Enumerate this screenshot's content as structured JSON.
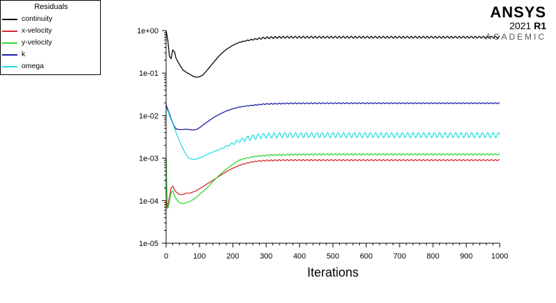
{
  "legend": {
    "title": "Residuals",
    "items": [
      {
        "label": "continuity",
        "color": "#000000"
      },
      {
        "label": "x-velocity",
        "color": "#d62728"
      },
      {
        "label": "y-velocity",
        "color": "#2ed62e"
      },
      {
        "label": "k",
        "color": "#1a1aa6"
      },
      {
        "label": "omega",
        "color": "#22dede"
      }
    ]
  },
  "brand": {
    "name": "ANSYS",
    "version_year": "2021",
    "version_release": "R1",
    "edition": "ACADEMIC"
  },
  "chart_data": {
    "type": "line",
    "xlabel": "Iterations",
    "ylabel": "",
    "xlim": [
      0,
      1000
    ],
    "ylim": [
      1e-05,
      1
    ],
    "yscale": "log",
    "x_ticks": [
      0,
      100,
      200,
      300,
      400,
      500,
      600,
      700,
      800,
      900,
      1000
    ],
    "y_ticks": [
      {
        "value": 1e-05,
        "label": "1e-05"
      },
      {
        "value": 0.0001,
        "label": "1e-04"
      },
      {
        "value": 0.001,
        "label": "1e-03"
      },
      {
        "value": 0.01,
        "label": "1e-02"
      },
      {
        "value": 0.1,
        "label": "1e-01"
      },
      {
        "value": 1,
        "label": "1e+00"
      }
    ],
    "grid": false,
    "legend_position": "top-left",
    "series": [
      {
        "name": "continuity",
        "color": "#000000",
        "x": [
          0,
          5,
          10,
          15,
          20,
          25,
          30,
          40,
          50,
          60,
          70,
          80,
          90,
          100,
          110,
          120,
          140,
          160,
          180,
          200,
          220,
          250,
          280,
          300,
          350,
          400,
          500,
          600,
          700,
          800,
          900,
          1000
        ],
        "y": [
          1.0,
          0.6,
          0.25,
          0.22,
          0.35,
          0.32,
          0.22,
          0.16,
          0.12,
          0.105,
          0.095,
          0.085,
          0.08,
          0.082,
          0.09,
          0.11,
          0.17,
          0.26,
          0.36,
          0.45,
          0.53,
          0.6,
          0.65,
          0.68,
          0.7,
          0.7,
          0.7,
          0.7,
          0.7,
          0.7,
          0.7,
          0.7
        ],
        "osc_start": 200,
        "osc_amp": 0.05,
        "osc_period": 12
      },
      {
        "name": "x-velocity",
        "color": "#d62728",
        "x": [
          0,
          3,
          6,
          10,
          15,
          20,
          25,
          30,
          40,
          50,
          60,
          70,
          80,
          90,
          100,
          120,
          140,
          160,
          180,
          200,
          220,
          240,
          260,
          280,
          300,
          350,
          400,
          500,
          600,
          700,
          800,
          900,
          1000
        ],
        "y": [
          0.0001,
          7e-05,
          8e-05,
          0.00012,
          0.0002,
          0.00022,
          0.00018,
          0.00016,
          0.00014,
          0.00014,
          0.00015,
          0.00015,
          0.00016,
          0.00017,
          0.00019,
          0.00024,
          0.0003,
          0.00038,
          0.00048,
          0.00058,
          0.00068,
          0.00076,
          0.00082,
          0.00086,
          0.00088,
          0.0009,
          0.0009,
          0.0009,
          0.0009,
          0.0009,
          0.0009,
          0.0009,
          0.0009
        ],
        "osc_start": 200,
        "osc_amp": 0.03,
        "osc_period": 12
      },
      {
        "name": "y-velocity",
        "color": "#2ed62e",
        "x": [
          0,
          2,
          5,
          8,
          12,
          16,
          20,
          25,
          30,
          40,
          50,
          60,
          70,
          80,
          90,
          100,
          120,
          140,
          160,
          180,
          200,
          220,
          240,
          260,
          280,
          300,
          350,
          400,
          500,
          600,
          700,
          800,
          900,
          1000
        ],
        "y": [
          0.001,
          0.0002,
          6.5e-05,
          8e-05,
          0.00012,
          0.00016,
          0.00017,
          0.00013,
          0.00011,
          9e-05,
          8.5e-05,
          9e-05,
          9.5e-05,
          0.000105,
          0.00012,
          0.00014,
          0.00019,
          0.00028,
          0.0004,
          0.00055,
          0.00072,
          0.0009,
          0.001,
          0.00108,
          0.00113,
          0.00117,
          0.0012,
          0.00122,
          0.00123,
          0.00123,
          0.00123,
          0.00123,
          0.00123,
          0.00123
        ],
        "osc_start": 200,
        "osc_amp": 0.03,
        "osc_period": 12
      },
      {
        "name": "k",
        "color": "#1a1aa6",
        "x": [
          0,
          5,
          10,
          15,
          20,
          25,
          30,
          40,
          50,
          60,
          70,
          80,
          90,
          100,
          120,
          140,
          160,
          180,
          200,
          220,
          250,
          280,
          300,
          350,
          400,
          500,
          600,
          700,
          800,
          900,
          1000
        ],
        "y": [
          0.018,
          0.014,
          0.011,
          0.0085,
          0.0068,
          0.0055,
          0.0049,
          0.0047,
          0.0047,
          0.0048,
          0.0047,
          0.0046,
          0.0047,
          0.0052,
          0.0068,
          0.0088,
          0.0108,
          0.0128,
          0.0145,
          0.016,
          0.0172,
          0.0182,
          0.0188,
          0.0193,
          0.0195,
          0.0196,
          0.0196,
          0.0196,
          0.0196,
          0.0196,
          0.0196
        ],
        "osc_start": 200,
        "osc_amp": 0.025,
        "osc_period": 12
      },
      {
        "name": "omega",
        "color": "#22dede",
        "x": [
          0,
          5,
          10,
          15,
          20,
          30,
          40,
          50,
          60,
          70,
          80,
          90,
          100,
          110,
          120,
          140,
          160,
          180,
          200,
          220,
          250,
          280,
          300,
          350,
          400,
          500,
          600,
          700,
          800,
          900,
          1000
        ],
        "y": [
          0.015,
          0.013,
          0.01,
          0.008,
          0.0065,
          0.004,
          0.0025,
          0.0017,
          0.0012,
          0.00098,
          0.00094,
          0.00095,
          0.001,
          0.0011,
          0.0012,
          0.0014,
          0.0016,
          0.0019,
          0.0022,
          0.0026,
          0.003,
          0.0033,
          0.0034,
          0.0035,
          0.0035,
          0.0035,
          0.0035,
          0.0035,
          0.0035,
          0.0035,
          0.0035
        ],
        "osc_start": 150,
        "osc_amp": 0.13,
        "osc_period": 16
      }
    ]
  }
}
